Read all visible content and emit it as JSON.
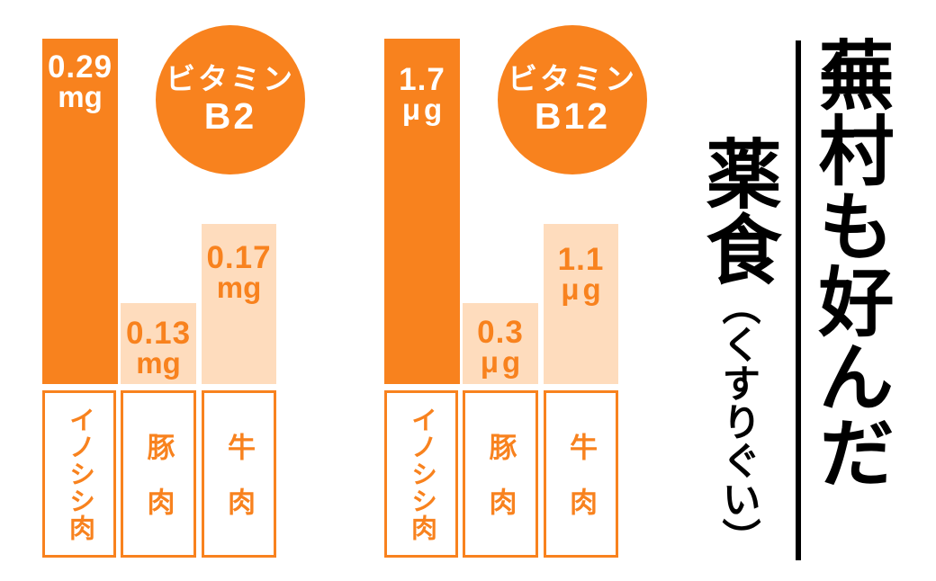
{
  "colors": {
    "primary_orange": "#F8821E",
    "light_peach": "#FEDCBD",
    "bar_text_white": "#FFFFFF",
    "title_black": "#000000"
  },
  "charts": [
    {
      "badge_line1": "ビタミン",
      "badge_line2": "B2",
      "bars": [
        {
          "value": "0.29",
          "unit": "mg",
          "label": "イノシシ肉"
        },
        {
          "value": "0.13",
          "unit": "mg",
          "label": "豚肉"
        },
        {
          "value": "0.17",
          "unit": "mg",
          "label": "牛肉"
        }
      ]
    },
    {
      "badge_line1": "ビタミン",
      "badge_line2": "B12",
      "bars": [
        {
          "value": "1.7",
          "unit": "μg",
          "label": "イノシシ肉"
        },
        {
          "value": "0.3",
          "unit": "μg",
          "label": "豚肉"
        },
        {
          "value": "1.1",
          "unit": "μg",
          "label": "牛肉"
        }
      ]
    }
  ],
  "title": {
    "main": "蕪村も好んだ",
    "sub_main": "薬食",
    "sub_reading": "（くすりぐい）"
  },
  "chart_data": [
    {
      "type": "bar",
      "title": "ビタミンB2",
      "categories": [
        "イノシシ肉",
        "豚肉",
        "牛肉"
      ],
      "values": [
        0.29,
        0.13,
        0.17
      ],
      "unit": "mg",
      "xlabel": "",
      "ylabel": "",
      "grid": false,
      "legend": false,
      "note": "highlight bar: イノシシ肉 (solid orange); others light peach; bar heights stylized, not strictly proportional"
    },
    {
      "type": "bar",
      "title": "ビタミンB12",
      "categories": [
        "イノシシ肉",
        "豚肉",
        "牛肉"
      ],
      "values": [
        1.7,
        0.3,
        1.1
      ],
      "unit": "μg",
      "xlabel": "",
      "ylabel": "",
      "grid": false,
      "legend": false,
      "note": "highlight bar: イノシシ肉 (solid orange); others light peach; bar heights stylized, not strictly proportional"
    }
  ]
}
